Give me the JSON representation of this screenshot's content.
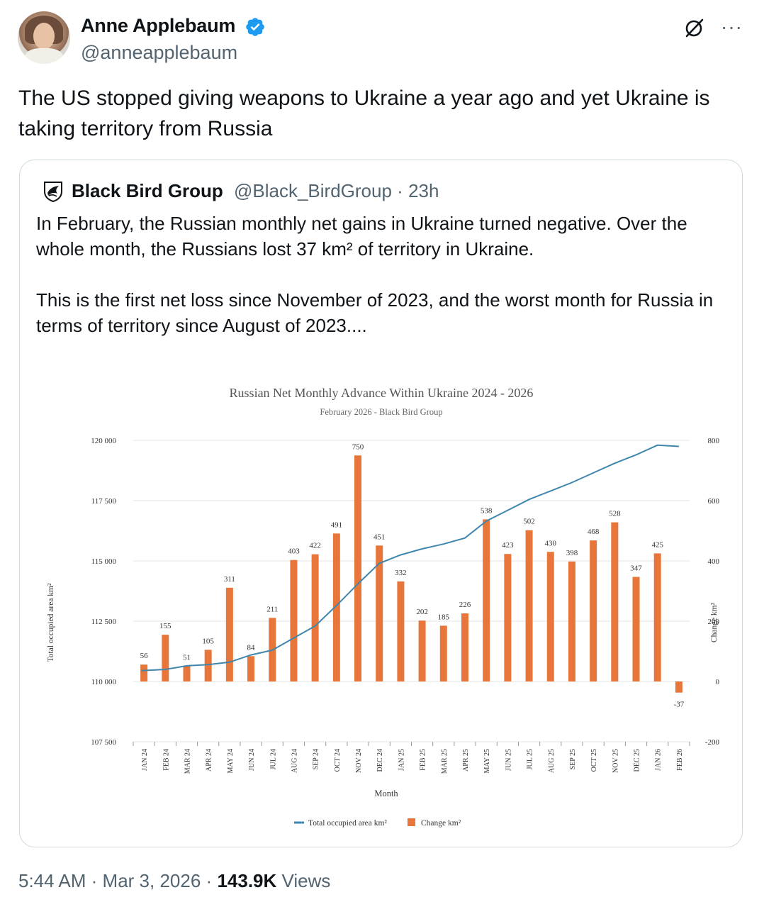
{
  "author": {
    "name": "Anne Applebaum",
    "handle": "@anneapplebaum"
  },
  "tweet": {
    "text": "The US stopped giving weapons to Ukraine a year ago and yet Ukraine is taking territory from Russia"
  },
  "quote": {
    "name": "Black Bird Group",
    "handle": "@Black_BirdGroup",
    "dot": "·",
    "age": "23h",
    "paragraph1": "In February, the Russian monthly net gains in Ukraine turned negative. Over the whole month, the Russians lost 37 km² of territory in Ukraine.",
    "paragraph2": "This is the first net loss since November of  2023, and the worst month for Russia in terms of territory since August of 2023...."
  },
  "footer": {
    "time": "5:44 AM",
    "sep1": "·",
    "date": "Mar 3, 2026",
    "sep2": "·",
    "views": "143.9K",
    "views_label": "Views"
  },
  "colors": {
    "bar": "#e8763a",
    "line": "#3f86ad",
    "verified": "#1d9bf0"
  },
  "chart_data": {
    "type": "bar",
    "title": "Russian Net Monthly Advance Within Ukraine 2024 - 2026",
    "subtitle": "February 2026 - Black Bird Group",
    "xlabel": "Month",
    "ylabel": "Total occupied area km²",
    "y2label": "Change km²",
    "categories": [
      "JAN 24",
      "FEB 24",
      "MAR 24",
      "APR 24",
      "MAY 24",
      "JUN 24",
      "JUL 24",
      "AUG 24",
      "SEP 24",
      "OCT 24",
      "NOV 24",
      "DEC 24",
      "JAN 25",
      "FEB 25",
      "MAR 25",
      "APR 25",
      "MAY 25",
      "JUN 25",
      "JUL 25",
      "AUG 25",
      "SEP 25",
      "OCT 25",
      "NOV 25",
      "DEC 25",
      "JAN 26",
      "FEB 26"
    ],
    "ylim": [
      107500,
      120000
    ],
    "yticks": [
      "107 500",
      "110 000",
      "112 500",
      "115 000",
      "117 500",
      "120 000"
    ],
    "y2lim": [
      -200,
      800
    ],
    "y2ticks": [
      "-200",
      "0",
      "200",
      "400",
      "600",
      "800"
    ],
    "series": [
      {
        "name": "Change km²",
        "type": "bar",
        "axis": "right",
        "values": [
          56,
          155,
          51,
          105,
          311,
          84,
          211,
          403,
          422,
          491,
          750,
          451,
          332,
          202,
          185,
          226,
          538,
          423,
          502,
          430,
          398,
          468,
          528,
          347,
          425,
          -37
        ]
      },
      {
        "name": "Total occupied area km²",
        "type": "line",
        "axis": "left",
        "values": [
          110450,
          110500,
          110650,
          110700,
          110800,
          111100,
          111300,
          111800,
          112300,
          113150,
          114050,
          114900,
          115250,
          115500,
          115700,
          115950,
          116650,
          117100,
          117550,
          117900,
          118250,
          118650,
          119050,
          119400,
          119800,
          119750
        ]
      }
    ],
    "legend_position": "bottom",
    "grid": true
  }
}
